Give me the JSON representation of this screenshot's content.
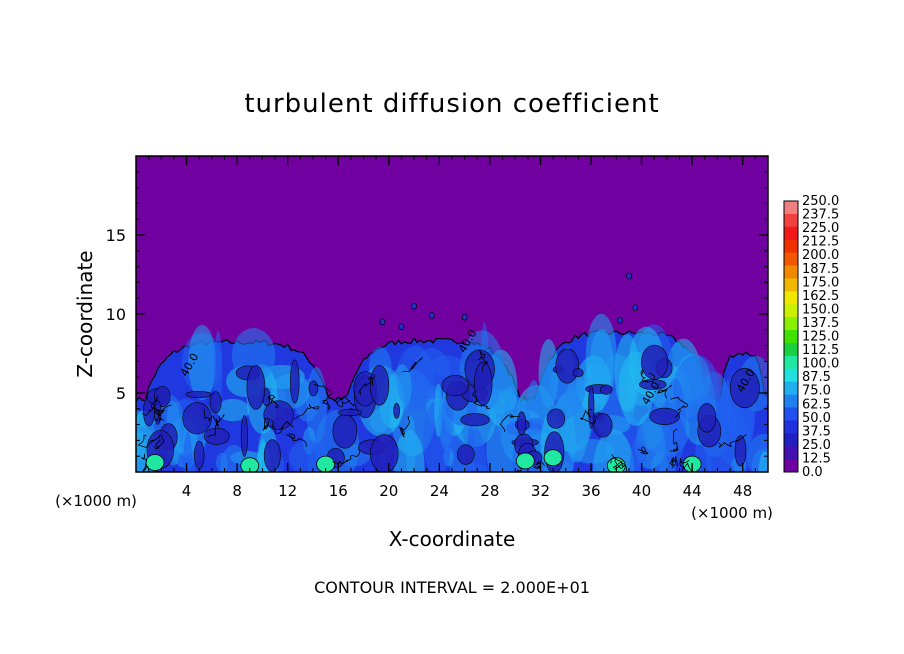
{
  "chart_data": {
    "type": "heatmap",
    "title": "turbulent diffusion coefficient",
    "xlabel": "X-coordinate",
    "ylabel": "Z-coordinate",
    "x_unit_left": "(×1000 m)",
    "x_unit_right": "(×1000 m)",
    "xlim": [
      0,
      50
    ],
    "ylim": [
      0,
      20
    ],
    "x_ticks": [
      4,
      8,
      12,
      16,
      20,
      24,
      28,
      32,
      36,
      40,
      44,
      48
    ],
    "y_ticks": [
      5,
      10,
      15
    ],
    "footer": "CONTOUR INTERVAL = 2.000E+01",
    "colorbar": {
      "labels": [
        "250.0",
        "237.5",
        "225.0",
        "212.5",
        "200.0",
        "187.5",
        "175.0",
        "162.5",
        "150.0",
        "137.5",
        "125.0",
        "112.5",
        "100.0",
        "87.5",
        "75.0",
        "62.5",
        "50.0",
        "37.5",
        "25.0",
        "12.5",
        "0.0"
      ],
      "colors": [
        "#f08080",
        "#f04040",
        "#f01818",
        "#f03000",
        "#f05800",
        "#f08800",
        "#f0b800",
        "#f0e800",
        "#c8f000",
        "#88f000",
        "#40e000",
        "#18d040",
        "#20e8a0",
        "#20e0e0",
        "#20b0f0",
        "#2080f0",
        "#2050f0",
        "#2030e0",
        "#2020c0",
        "#4010b0",
        "#7000a0"
      ]
    },
    "field": {
      "background_value": 0.0,
      "background_color": "#7000a0",
      "turbulent_domes": [
        {
          "x_start": 0,
          "x_end": 16,
          "top_z": 8.2
        },
        {
          "x_start": 16,
          "x_end": 31,
          "top_z": 8.3
        },
        {
          "x_start": 31,
          "x_end": 46,
          "top_z": 8.8
        },
        {
          "x_start": 46,
          "x_end": 50,
          "top_z": 7.5
        }
      ],
      "interior_typical_range": [
        12.5,
        62.5
      ],
      "surface_maximum_range": [
        75,
        100
      ],
      "contour_labels": [
        "40.0",
        "40.0",
        "40.0",
        "40.0"
      ]
    }
  }
}
